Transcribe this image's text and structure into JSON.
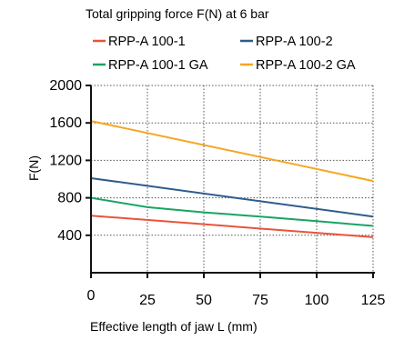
{
  "chart_data": {
    "type": "line",
    "title": "Total gripping force F(N) at 6 bar",
    "xlabel": "Effective length of jaw L (mm)",
    "ylabel": "F(N)",
    "xlim": [
      0,
      125
    ],
    "ylim": [
      0,
      2000
    ],
    "x_ticks": [
      0,
      25,
      50,
      75,
      100,
      125
    ],
    "y_ticks": [
      400,
      800,
      1200,
      1600,
      2000
    ],
    "grid": true,
    "legend_position": "top",
    "series": [
      {
        "name": "RPP-A 100-1",
        "color": "#e8543a",
        "x": [
          0,
          125
        ],
        "y": [
          610,
          380
        ]
      },
      {
        "name": "RPP-A 100-2",
        "color": "#2e5c8a",
        "x": [
          0,
          125
        ],
        "y": [
          1010,
          600
        ]
      },
      {
        "name": "RPP-A 100-1 GA",
        "color": "#19a463",
        "x": [
          0,
          25,
          50,
          75,
          100,
          125
        ],
        "y": [
          800,
          700,
          645,
          600,
          550,
          500
        ]
      },
      {
        "name": "RPP-A 100-2 GA",
        "color": "#f5a623",
        "x": [
          0,
          125
        ],
        "y": [
          1620,
          980
        ]
      }
    ]
  }
}
